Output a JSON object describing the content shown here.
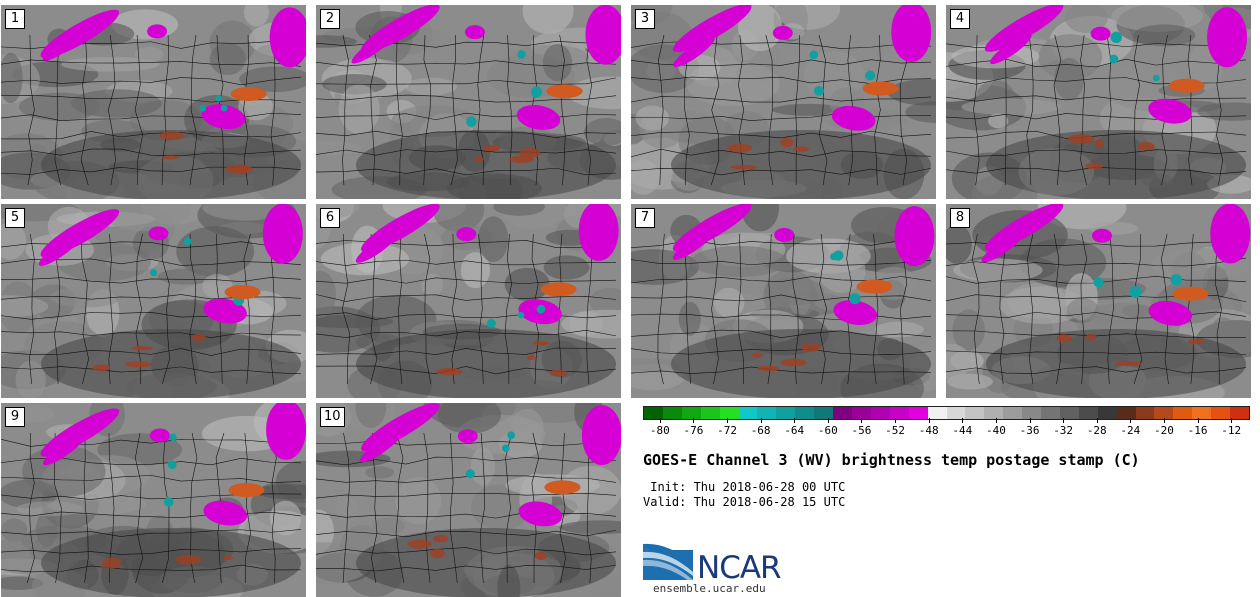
{
  "panels": [
    {
      "label": "1"
    },
    {
      "label": "2"
    },
    {
      "label": "3"
    },
    {
      "label": "4"
    },
    {
      "label": "5"
    },
    {
      "label": "6"
    },
    {
      "label": "7"
    },
    {
      "label": "8"
    },
    {
      "label": "9"
    },
    {
      "label": "10"
    }
  ],
  "colorbar": {
    "colors": [
      "#006400",
      "#0a8a0a",
      "#10a810",
      "#1ac61a",
      "#22e022",
      "#10c8c8",
      "#10b4b4",
      "#10a0a0",
      "#108c8c",
      "#107878",
      "#800080",
      "#9a009a",
      "#b000b0",
      "#c800c8",
      "#e000e0",
      "#f0f0f0",
      "#d8d8d8",
      "#c4c4c4",
      "#b0b0b0",
      "#9c9c9c",
      "#888888",
      "#747474",
      "#606060",
      "#4c4c4c",
      "#383838",
      "#5a2a1a",
      "#8a3a1a",
      "#b8481a",
      "#e05a10",
      "#f07020",
      "#e85010",
      "#d03010"
    ],
    "tick_labels": [
      "-80",
      "-76",
      "-72",
      "-68",
      "-64",
      "-60",
      "-56",
      "-52",
      "-48",
      "-44",
      "-40",
      "-36",
      "-32",
      "-28",
      "-24",
      "-20",
      "-16",
      "-12"
    ],
    "tick_values": [
      -80,
      -76,
      -72,
      -68,
      -64,
      -60,
      -56,
      -52,
      -48,
      -44,
      -40,
      -36,
      -32,
      -28,
      -24,
      -20,
      -16,
      -12
    ],
    "min": -82,
    "max": -10
  },
  "title": "GOES-E Channel 3 (WV) brightness temp postage stamp (C)",
  "init": " Init: Thu 2018-06-28 00 UTC",
  "valid": "Valid: Thu 2018-06-28 15 UTC",
  "logo_text": "NCAR",
  "url": "ensemble.ucar.edu"
}
